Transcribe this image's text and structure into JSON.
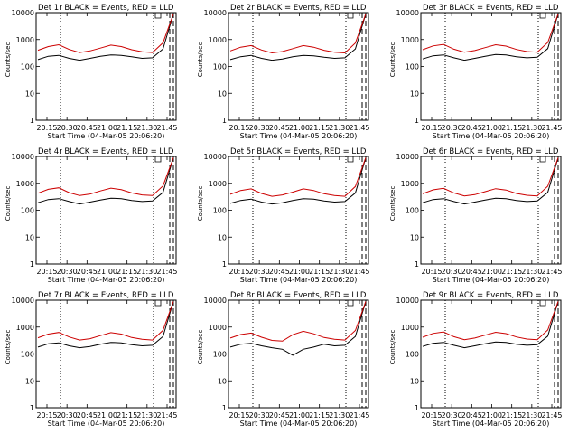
{
  "chart_data": [
    {
      "type": "line",
      "title": "Det 1r BLACK = Events, RED = LLD",
      "xlabel": "Start Time (04-Mar-05 20:06:20)",
      "ylabel": "Counts/sec",
      "xticks": [
        "20:15",
        "20:30",
        "20:45",
        "21:00",
        "21:15",
        "21:30",
        "21:45"
      ],
      "yticks": [
        "1",
        "10",
        "100",
        "1000",
        "10000"
      ],
      "ylim": [
        1,
        10000
      ],
      "yscale": "log",
      "series": [
        {
          "name": "Events",
          "color": "#000000",
          "values": [
            180,
            240,
            260,
            200,
            170,
            200,
            240,
            270,
            260,
            230,
            200,
            210,
            450,
            9000
          ]
        },
        {
          "name": "LLD",
          "color": "#cc0000",
          "values": [
            400,
            550,
            640,
            430,
            330,
            380,
            480,
            620,
            550,
            420,
            350,
            330,
            760,
            9000
          ]
        }
      ]
    },
    {
      "type": "line",
      "title": "Det 2r BLACK = Events, RED = LLD",
      "xlabel": "Start Time (04-Mar-05 20:06:20)",
      "ylabel": "Counts/sec",
      "xticks": [
        "20:15",
        "20:30",
        "20:45",
        "21:00",
        "21:15",
        "21:30",
        "21:45"
      ],
      "yticks": [
        "1",
        "10",
        "100",
        "1000",
        "10000"
      ],
      "ylim": [
        1,
        10000
      ],
      "yscale": "log",
      "series": [
        {
          "name": "Events",
          "color": "#000000",
          "values": [
            180,
            230,
            260,
            200,
            170,
            190,
            230,
            260,
            250,
            220,
            200,
            210,
            450,
            9000
          ]
        },
        {
          "name": "LLD",
          "color": "#cc0000",
          "values": [
            380,
            520,
            600,
            410,
            320,
            360,
            460,
            600,
            520,
            400,
            340,
            320,
            740,
            9000
          ]
        }
      ]
    },
    {
      "type": "line",
      "title": "Det 3r BLACK = Events, RED = LLD",
      "xlabel": "Start Time (04-Mar-05 20:06:20)",
      "ylabel": "Counts/sec",
      "xticks": [
        "20:15",
        "20:30",
        "20:45",
        "21:00",
        "21:15",
        "21:30",
        "21:45"
      ],
      "yticks": [
        "1",
        "10",
        "100",
        "1000",
        "10000"
      ],
      "ylim": [
        1,
        10000
      ],
      "yscale": "log",
      "series": [
        {
          "name": "Events",
          "color": "#000000",
          "values": [
            190,
            250,
            270,
            210,
            170,
            200,
            240,
            280,
            270,
            230,
            210,
            220,
            460,
            9000
          ]
        },
        {
          "name": "LLD",
          "color": "#cc0000",
          "values": [
            420,
            580,
            660,
            440,
            340,
            390,
            500,
            640,
            570,
            430,
            360,
            340,
            780,
            9000
          ]
        }
      ]
    },
    {
      "type": "line",
      "title": "Det 4r BLACK = Events, RED = LLD",
      "xlabel": "Start Time (04-Mar-05 20:06:20)",
      "ylabel": "Counts/sec",
      "xticks": [
        "20:15",
        "20:30",
        "20:45",
        "21:00",
        "21:15",
        "21:30",
        "21:45"
      ],
      "yticks": [
        "1",
        "10",
        "100",
        "1000",
        "10000"
      ],
      "ylim": [
        1,
        10000
      ],
      "yscale": "log",
      "series": [
        {
          "name": "Events",
          "color": "#000000",
          "values": [
            190,
            250,
            270,
            210,
            170,
            200,
            240,
            280,
            270,
            230,
            210,
            220,
            460,
            9000
          ]
        },
        {
          "name": "LLD",
          "color": "#cc0000",
          "values": [
            430,
            600,
            680,
            450,
            350,
            400,
            520,
            660,
            580,
            440,
            370,
            350,
            800,
            9000
          ]
        }
      ]
    },
    {
      "type": "line",
      "title": "Det 5r BLACK = Events, RED = LLD",
      "xlabel": "Start Time (04-Mar-05 20:06:20)",
      "ylabel": "Counts/sec",
      "xticks": [
        "20:15",
        "20:30",
        "20:45",
        "21:00",
        "21:15",
        "21:30",
        "21:45"
      ],
      "yticks": [
        "1",
        "10",
        "100",
        "1000",
        "10000"
      ],
      "ylim": [
        1,
        10000
      ],
      "yscale": "log",
      "series": [
        {
          "name": "Events",
          "color": "#000000",
          "values": [
            180,
            230,
            260,
            200,
            170,
            190,
            230,
            270,
            260,
            220,
            200,
            210,
            440,
            9000
          ]
        },
        {
          "name": "LLD",
          "color": "#cc0000",
          "values": [
            390,
            540,
            620,
            420,
            330,
            370,
            470,
            620,
            540,
            410,
            350,
            330,
            760,
            9000
          ]
        }
      ]
    },
    {
      "type": "line",
      "title": "Det 6r BLACK = Events, RED = LLD",
      "xlabel": "Start Time (04-Mar-05 20:06:20)",
      "ylabel": "Counts/sec",
      "xticks": [
        "20:15",
        "20:30",
        "20:45",
        "21:00",
        "21:15",
        "21:30",
        "21:45"
      ],
      "yticks": [
        "1",
        "10",
        "100",
        "1000",
        "10000"
      ],
      "ylim": [
        1,
        10000
      ],
      "yscale": "log",
      "series": [
        {
          "name": "Events",
          "color": "#000000",
          "values": [
            190,
            250,
            270,
            210,
            170,
            200,
            240,
            280,
            270,
            230,
            210,
            220,
            460,
            9000
          ]
        },
        {
          "name": "LLD",
          "color": "#cc0000",
          "values": [
            410,
            570,
            650,
            440,
            340,
            380,
            490,
            630,
            560,
            420,
            360,
            340,
            780,
            9000
          ]
        }
      ]
    },
    {
      "type": "line",
      "title": "Det 7r BLACK = Events, RED = LLD",
      "xlabel": "Start Time (04-Mar-05 20:06:20)",
      "ylabel": "Counts/sec",
      "xticks": [
        "20:15",
        "20:30",
        "20:45",
        "21:00",
        "21:15",
        "21:30",
        "21:45"
      ],
      "yticks": [
        "1",
        "10",
        "100",
        "1000",
        "10000"
      ],
      "ylim": [
        1,
        10000
      ],
      "yscale": "log",
      "series": [
        {
          "name": "Events",
          "color": "#000000",
          "values": [
            180,
            240,
            260,
            200,
            170,
            190,
            230,
            270,
            260,
            220,
            200,
            210,
            450,
            9000
          ]
        },
        {
          "name": "LLD",
          "color": "#cc0000",
          "values": [
            400,
            550,
            630,
            430,
            330,
            370,
            480,
            620,
            550,
            410,
            350,
            330,
            760,
            9000
          ]
        }
      ]
    },
    {
      "type": "line",
      "title": "Det 8r BLACK = Events, RED = LLD",
      "xlabel": "Start Time (04-Mar-05 20:06:20)",
      "ylabel": "Counts/sec",
      "xticks": [
        "20:15",
        "20:30",
        "20:45",
        "21:00",
        "21:15",
        "21:30",
        "21:45"
      ],
      "yticks": [
        "1",
        "10",
        "100",
        "1000",
        "10000"
      ],
      "ylim": [
        1,
        10000
      ],
      "yscale": "log",
      "series": [
        {
          "name": "Events",
          "color": "#000000",
          "values": [
            180,
            230,
            250,
            200,
            170,
            150,
            90,
            150,
            180,
            230,
            200,
            210,
            450,
            9000
          ]
        },
        {
          "name": "LLD",
          "color": "#cc0000",
          "values": [
            390,
            530,
            600,
            420,
            320,
            300,
            520,
            700,
            560,
            410,
            350,
            330,
            750,
            9000
          ]
        }
      ]
    },
    {
      "type": "line",
      "title": "Det 9r BLACK = Events, RED = LLD",
      "xlabel": "Start Time (04-Mar-05 20:06:20)",
      "ylabel": "Counts/sec",
      "xticks": [
        "20:15",
        "20:30",
        "20:45",
        "21:00",
        "21:15",
        "21:30",
        "21:45"
      ],
      "yticks": [
        "1",
        "10",
        "100",
        "1000",
        "10000"
      ],
      "ylim": [
        1,
        10000
      ],
      "yscale": "log",
      "series": [
        {
          "name": "Events",
          "color": "#000000",
          "values": [
            190,
            250,
            270,
            210,
            170,
            200,
            240,
            280,
            270,
            230,
            210,
            220,
            460,
            9000
          ]
        },
        {
          "name": "LLD",
          "color": "#cc0000",
          "values": [
            420,
            580,
            660,
            440,
            340,
            390,
            500,
            640,
            570,
            430,
            360,
            340,
            780,
            9000
          ]
        }
      ]
    }
  ]
}
